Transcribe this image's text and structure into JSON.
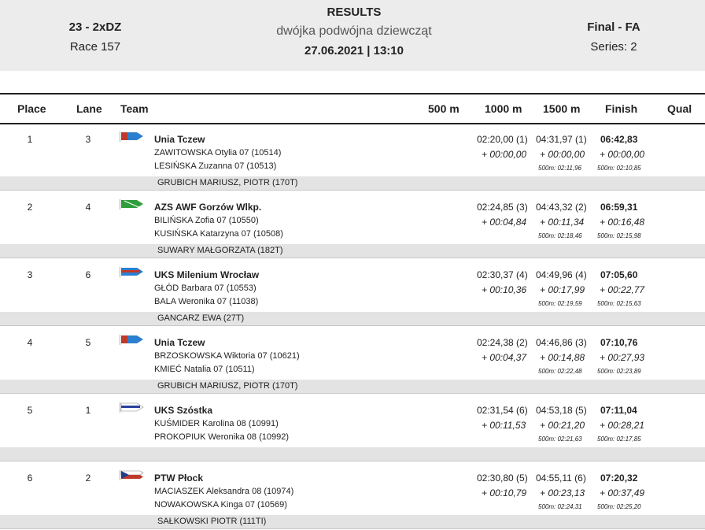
{
  "header": {
    "event_code": "23 - 2xDZ",
    "race": "Race 157",
    "title": "RESULTS",
    "subtitle": "dwójka podwójna dziewcząt",
    "datetime": "27.06.2021 | 13:10",
    "final": "Final - FA",
    "series": "Series: 2"
  },
  "columns": {
    "place": "Place",
    "lane": "Lane",
    "team": "Team",
    "m500": "500 m",
    "m1000": "1000 m",
    "m1500": "1500 m",
    "finish": "Finish",
    "qual": "Qual"
  },
  "rows": [
    {
      "place": "1",
      "lane": "3",
      "team": "Unia Tczew",
      "flag": "unia",
      "crew1": "ZAWITOWSKA  Otylia 07 (10514)",
      "crew2": "LESIŃSKA  Zuzanna 07 (10513)",
      "t1000": "02:20,00 (1)",
      "d1000": "+ 00:00,00",
      "t1500": "04:31,97 (1)",
      "d1500": "+ 00:00,00",
      "s1500": "500m: 02:11,96",
      "tfin": "06:42,83",
      "dfin": "+ 00:00,00",
      "sfin": "500m: 02:10,85",
      "coach": "GRUBICH MARIUSZ, PIOTR (170T)"
    },
    {
      "place": "2",
      "lane": "4",
      "team": "AZS AWF Gorzów Wlkp.",
      "flag": "azs",
      "crew1": "BILIŃSKA  Zofia 07 (10550)",
      "crew2": "KUSIŃSKA  Katarzyna 07 (10508)",
      "t1000": "02:24,85 (3)",
      "d1000": "+ 00:04,84",
      "t1500": "04:43,32 (2)",
      "d1500": "+ 00:11,34",
      "s1500": "500m: 02:18,46",
      "tfin": "06:59,31",
      "dfin": "+ 00:16,48",
      "sfin": "500m: 02:15,98",
      "coach": "SUWARY MAŁGORZATA (182T)"
    },
    {
      "place": "3",
      "lane": "6",
      "team": "UKS Milenium Wrocław",
      "flag": "milenium",
      "crew1": "GŁÓD  Barbara 07 (10553)",
      "crew2": "BALA  Weronika 07 (11038)",
      "t1000": "02:30,37 (4)",
      "d1000": "+ 00:10,36",
      "t1500": "04:49,96 (4)",
      "d1500": "+ 00:17,99",
      "s1500": "500m: 02:19,59",
      "tfin": "07:05,60",
      "dfin": "+ 00:22,77",
      "sfin": "500m: 02:15,63",
      "coach": "GANCARZ EWA (27T)"
    },
    {
      "place": "4",
      "lane": "5",
      "team": "Unia Tczew",
      "flag": "unia",
      "crew1": "BRZOSKOWSKA  Wiktoria 07 (10621)",
      "crew2": "KMIEĆ  Natalia 07 (10511)",
      "t1000": "02:24,38 (2)",
      "d1000": "+ 00:04,37",
      "t1500": "04:46,86 (3)",
      "d1500": "+ 00:14,88",
      "s1500": "500m: 02:22,48",
      "tfin": "07:10,76",
      "dfin": "+ 00:27,93",
      "sfin": "500m: 02:23,89",
      "coach": "GRUBICH MARIUSZ, PIOTR (170T)"
    },
    {
      "place": "5",
      "lane": "1",
      "team": "UKS Szóstka",
      "flag": "szostka",
      "crew1": "KUŚMIDER  Karolina 08 (10991)",
      "crew2": "PROKOPIUK  Weronika 08 (10992)",
      "t1000": "02:31,54 (6)",
      "d1000": "+ 00:11,53",
      "t1500": "04:53,18 (5)",
      "d1500": "+ 00:21,20",
      "s1500": "500m: 02:21,63",
      "tfin": "07:11,04",
      "dfin": "+ 00:28,21",
      "sfin": "500m: 02:17,85",
      "coach": ""
    },
    {
      "place": "6",
      "lane": "2",
      "team": "PTW Płock",
      "flag": "ptw",
      "crew1": "MACIASZEK  Aleksandra 08 (10974)",
      "crew2": "NOWAKOWSKA  Kinga 07 (10569)",
      "t1000": "02:30,80 (5)",
      "d1000": "+ 00:10,79",
      "t1500": "04:55,11 (6)",
      "d1500": "+ 00:23,13",
      "s1500": "500m: 02:24,31",
      "tfin": "07:20,32",
      "dfin": "+ 00:37,49",
      "sfin": "500m: 02:25,20",
      "coach": "SAŁKOWSKI PIOTR (111TI)"
    }
  ]
}
